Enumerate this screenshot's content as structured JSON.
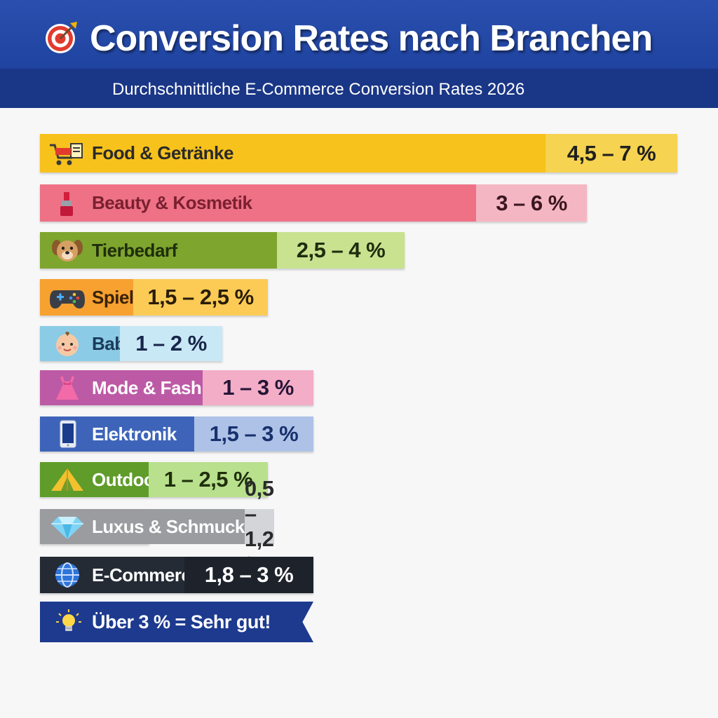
{
  "header": {
    "title": "Conversion Rates nach Branchen",
    "subtitle": "Durchschnittliche E-Commerce Conversion Rates 2026",
    "title_icon": "target-icon",
    "header_color": "#2448a8",
    "subheader_color": "#1a3686"
  },
  "chart_data": {
    "type": "bar",
    "orientation": "horizontal",
    "title": "Conversion Rates nach Branchen",
    "subtitle": "Durchschnittliche E-Commerce Conversion Rates 2026",
    "unit": "%",
    "categories": [
      "Food & Getränke",
      "Beauty & Kosmetik",
      "Tierbedarf",
      "Spielzeug",
      "Baby & Kinder",
      "Mode & Fashion",
      "Elektronik",
      "Outdoor & Camping",
      "Luxus & Schmuck",
      "E-Commerce Ø Gesamt"
    ],
    "ranges": [
      [
        4.5,
        7
      ],
      [
        3,
        6
      ],
      [
        2.5,
        4
      ],
      [
        1.5,
        2.5
      ],
      [
        1,
        2
      ],
      [
        1,
        3
      ],
      [
        1.5,
        3
      ],
      [
        1,
        2.5
      ],
      [
        0.5,
        1.2
      ],
      [
        1.8,
        3
      ]
    ],
    "value_labels": [
      "4,5 – 7 %",
      "3 – 6 %",
      "2,5 – 4 %",
      "1,5 – 2,5 %",
      "1 – 2 %",
      "1 – 3 %",
      "1,5 – 3 %",
      "1 – 2,5 %",
      "0,5 – 1,2 %",
      "1,8 – 3 %"
    ],
    "icons": [
      "shopping-cart-icon",
      "lipstick-icon",
      "dog-icon",
      "gamepad-icon",
      "baby-icon",
      "dress-icon",
      "smartphone-icon",
      "tent-icon",
      "diamond-icon",
      "globe-icon"
    ],
    "colors": [
      {
        "main": "#f8c21c",
        "light": "#f6d350",
        "text": "#2a2a2a",
        "value_text": "#1f1f1f"
      },
      {
        "main": "#ee7186",
        "light": "#f5b6c3",
        "text": "#7a2030",
        "value_text": "#3a1620"
      },
      {
        "main": "#7ea52d",
        "light": "#c8e290",
        "text": "#1f2d0c",
        "value_text": "#1f2d0c"
      },
      {
        "main": "#f7a130",
        "light": "#fbcb56",
        "text": "#3a2208",
        "value_text": "#2a1d08"
      },
      {
        "main": "#8bcbe5",
        "light": "#c9e8f6",
        "text": "#1c3a5a",
        "value_text": "#17264a"
      },
      {
        "main": "#bd5aa5",
        "light": "#f3adc6",
        "text": "#ffffff",
        "value_text": "#261538"
      },
      {
        "main": "#3d64b8",
        "light": "#aec2e7",
        "text": "#ffffff",
        "value_text": "#17306d"
      },
      {
        "main": "#5f9c2a",
        "light": "#b9e08d",
        "text": "#ffffff",
        "value_text": "#1f2f0c"
      },
      {
        "main": "#9b9ca0",
        "light": "#d4d5d8",
        "text": "#ffffff",
        "value_text": "#2a2a2d"
      },
      {
        "main": "#242b35",
        "light": "#1e232b",
        "text": "#ffffff",
        "value_text": "#ffffff"
      }
    ]
  },
  "callout": {
    "text": "Über 3 % = Sehr gut!",
    "icon": "lightbulb-icon",
    "color": "#1d3a8f"
  }
}
